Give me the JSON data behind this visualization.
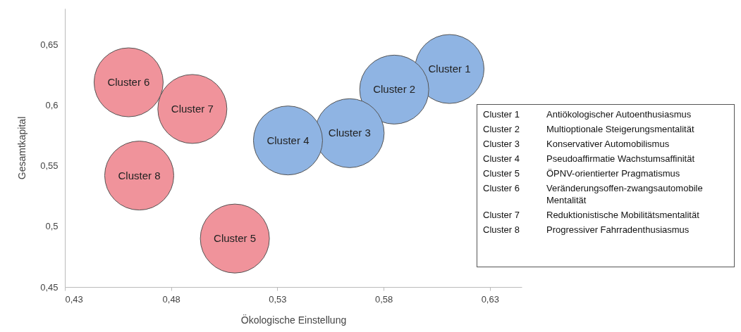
{
  "chart_data": {
    "type": "bubble",
    "xlabel": "Ökologische Einstellung",
    "ylabel": "Gesamtkapital",
    "xlim": [
      0.43,
      0.645
    ],
    "ylim": [
      0.45,
      0.68
    ],
    "xticks": [
      {
        "value": 0.43,
        "label": "0,43"
      },
      {
        "value": 0.48,
        "label": "0,48"
      },
      {
        "value": 0.53,
        "label": "0,53"
      },
      {
        "value": 0.58,
        "label": "0,58"
      },
      {
        "value": 0.63,
        "label": "0,63"
      }
    ],
    "yticks": [
      {
        "value": 0.45,
        "label": "0,45"
      },
      {
        "value": 0.5,
        "label": "0,5"
      },
      {
        "value": 0.55,
        "label": "0,55"
      },
      {
        "value": 0.6,
        "label": "0,6"
      },
      {
        "value": 0.65,
        "label": "0,65"
      }
    ],
    "grid": false,
    "marker": "circle",
    "series": [
      {
        "name": "Cluster 1",
        "color": "#8fb4e3",
        "x": [
          0.611
        ],
        "values": [
          0.63
        ],
        "sizes": [
          1
        ]
      },
      {
        "name": "Cluster 2",
        "color": "#8fb4e3",
        "x": [
          0.585
        ],
        "values": [
          0.613
        ],
        "sizes": [
          1
        ]
      },
      {
        "name": "Cluster 3",
        "color": "#8fb4e3",
        "x": [
          0.564
        ],
        "values": [
          0.577
        ],
        "sizes": [
          1
        ]
      },
      {
        "name": "Cluster 4",
        "color": "#8fb4e3",
        "x": [
          0.535
        ],
        "values": [
          0.571
        ],
        "sizes": [
          1
        ]
      },
      {
        "name": "Cluster 5",
        "color": "#f0939b",
        "x": [
          0.51
        ],
        "values": [
          0.49
        ],
        "sizes": [
          1
        ]
      },
      {
        "name": "Cluster 6",
        "color": "#f0939b",
        "x": [
          0.46
        ],
        "values": [
          0.619
        ],
        "sizes": [
          1
        ]
      },
      {
        "name": "Cluster 7",
        "color": "#f0939b",
        "x": [
          0.49
        ],
        "values": [
          0.597
        ],
        "sizes": [
          1
        ]
      },
      {
        "name": "Cluster 8",
        "color": "#f0939b",
        "x": [
          0.465
        ],
        "values": [
          0.542
        ],
        "sizes": [
          1
        ]
      }
    ],
    "annotations": [
      "Antiökologischer Autoenthusiasmus",
      "Multioptionale Steigerungsmentalität",
      "Konservativer Automobilismus",
      "Pseudoaffirmatie Wachstumsaffinität",
      "ÖPNV-orientierter Pragmatismus",
      "Veränderungsoffen-zwangsautomobile Mentalität",
      "Reduktionistische Mobilitätsmentalität",
      "Progressiver Fahrradenthusiasmus"
    ]
  }
}
